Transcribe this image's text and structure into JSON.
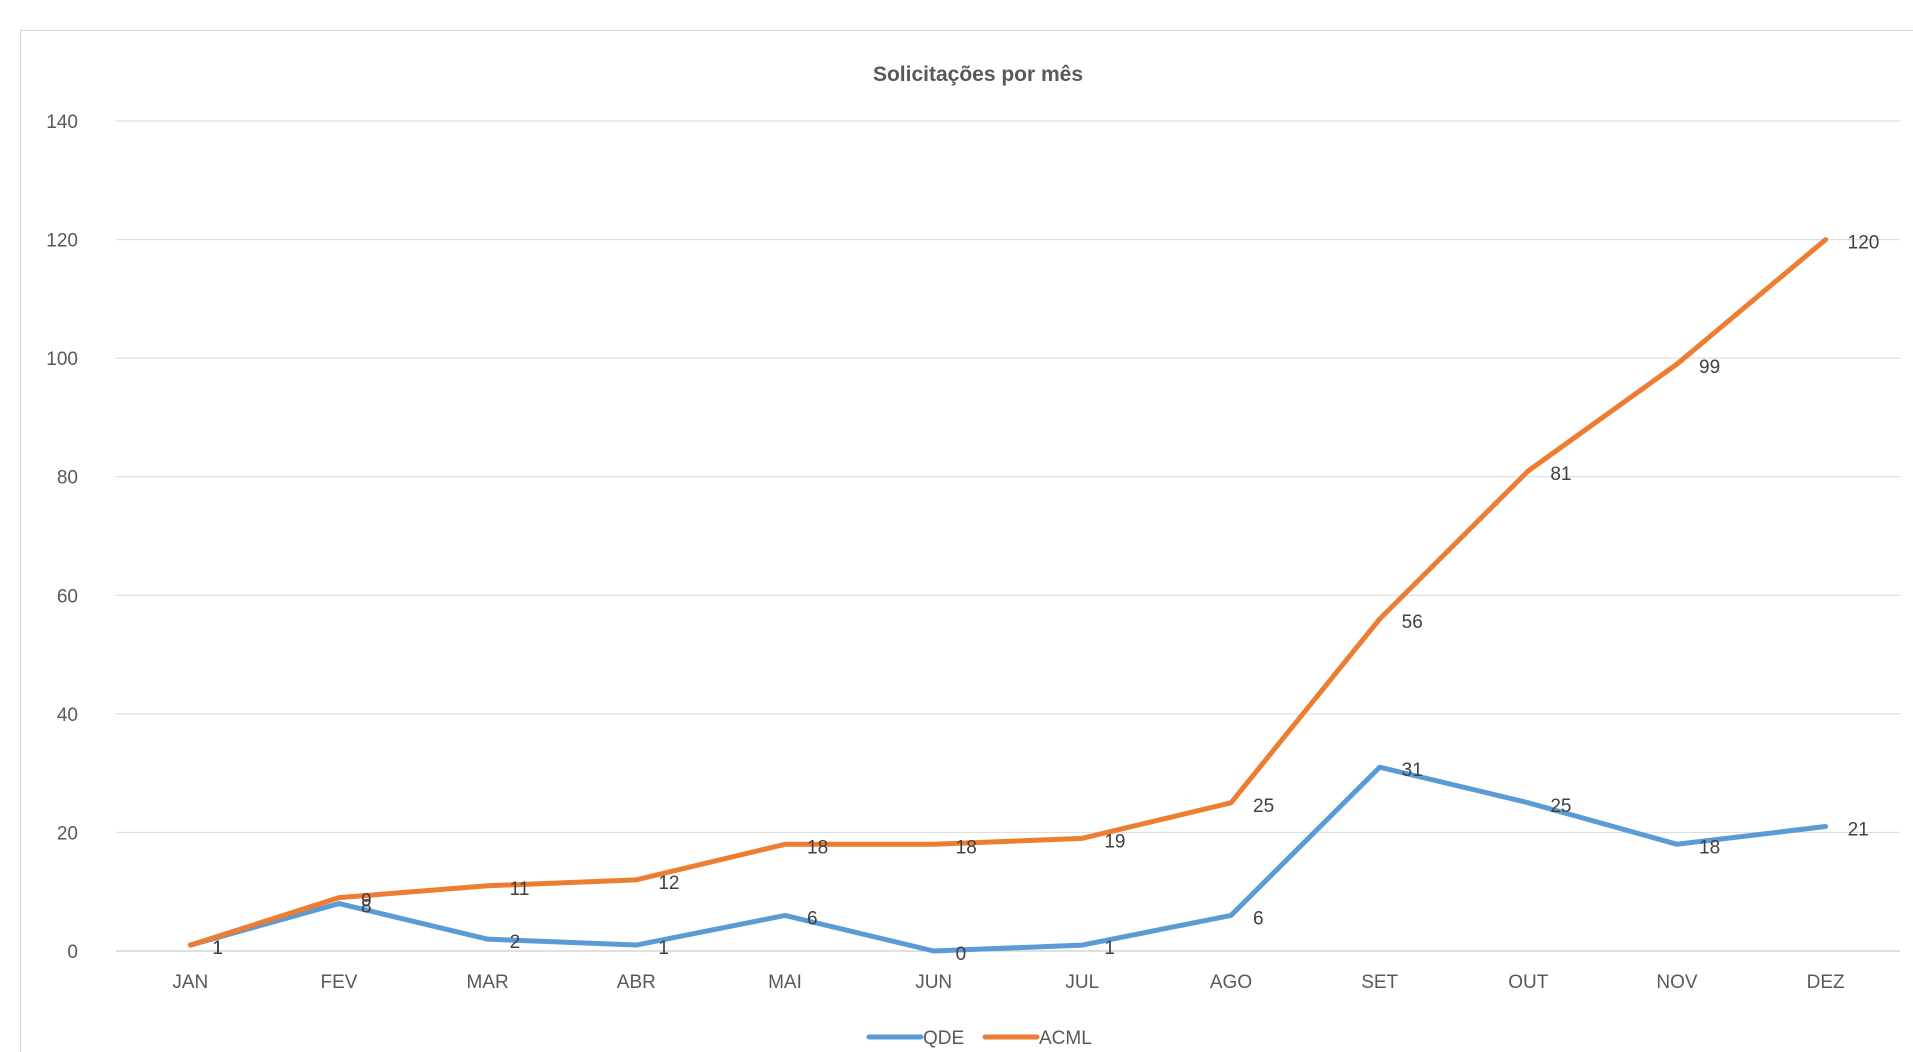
{
  "chart_data": {
    "type": "line",
    "title": "Solicitações por mês",
    "xlabel": "",
    "ylabel": "",
    "categories": [
      "JAN",
      "FEV",
      "MAR",
      "ABR",
      "MAI",
      "JUN",
      "JUL",
      "AGO",
      "SET",
      "OUT",
      "NOV",
      "DEZ"
    ],
    "ylim": [
      0,
      140
    ],
    "yticks": [
      0,
      20,
      40,
      60,
      80,
      100,
      120,
      140
    ],
    "grid": true,
    "legend_position": "bottom",
    "series": [
      {
        "name": "QDE",
        "color": "#5b9bd5",
        "values": [
          1,
          8,
          2,
          1,
          6,
          0,
          1,
          6,
          31,
          25,
          18,
          21
        ]
      },
      {
        "name": "ACML",
        "color": "#ed7d31",
        "values": [
          1,
          9,
          11,
          12,
          18,
          18,
          19,
          25,
          56,
          81,
          99,
          120
        ]
      }
    ]
  }
}
